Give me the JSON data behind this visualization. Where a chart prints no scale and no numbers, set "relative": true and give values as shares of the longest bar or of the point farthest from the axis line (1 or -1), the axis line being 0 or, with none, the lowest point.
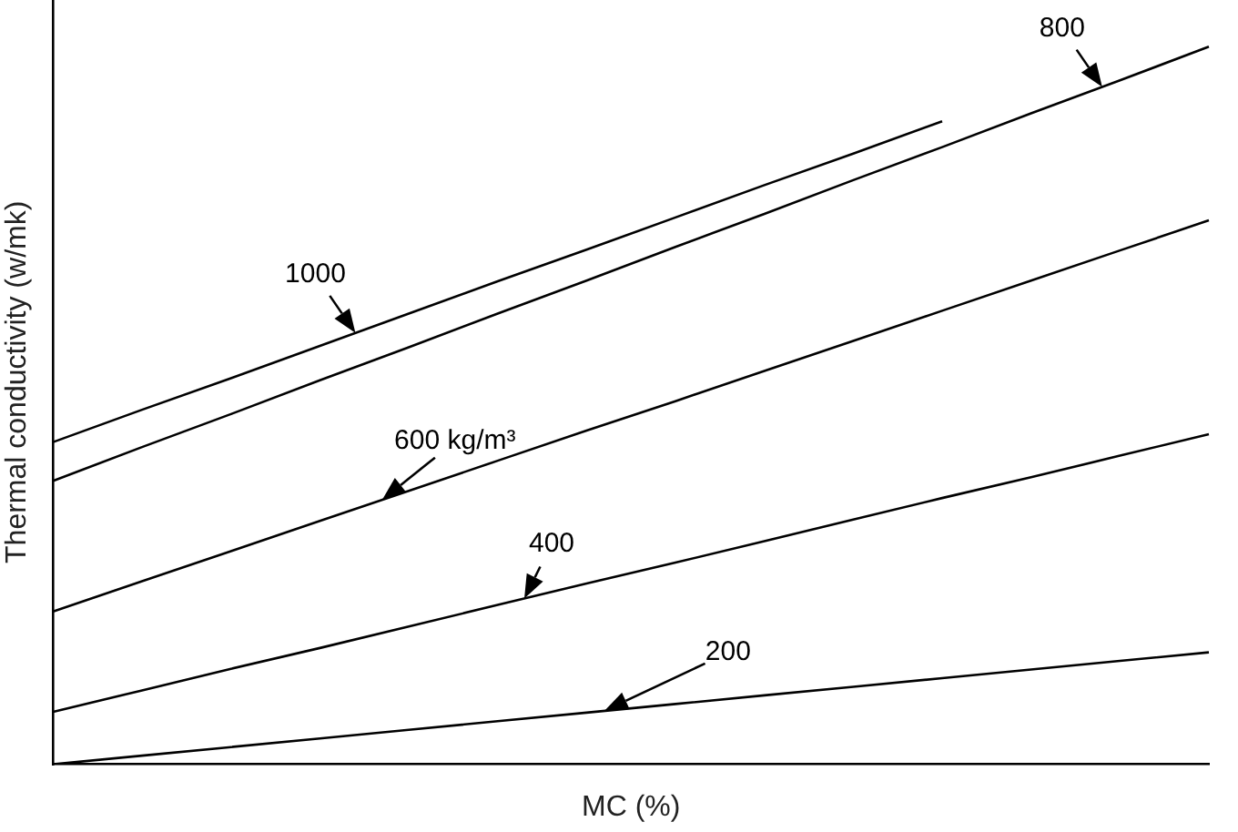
{
  "chart_data": {
    "type": "line",
    "relative": true,
    "xlabel": "MC (%)",
    "ylabel": "Thermal conductivity (w/mk)",
    "categories": [
      null,
      null,
      null,
      null,
      null,
      null,
      null,
      null,
      null,
      null,
      null,
      null,
      null,
      null
    ],
    "marker": "none",
    "line_style": "solid",
    "legend": false,
    "grid": false,
    "series": [
      {
        "name": "1000",
        "color": "#000000",
        "values": [
          0.449,
          0.494,
          0.538,
          0.583,
          0.628,
          0.673,
          0.717,
          0.762,
          0.807,
          0.851,
          0.896,
          null,
          null,
          null
        ]
      },
      {
        "name": "800",
        "color": "#000000",
        "values": [
          0.395,
          0.442,
          0.488,
          0.535,
          0.581,
          0.628,
          0.674,
          0.721,
          0.767,
          0.814,
          0.86,
          0.907,
          0.953,
          1
        ]
      },
      {
        "name": "600 kg/m³",
        "color": "#000000",
        "values": [
          0.213,
          0.255,
          0.297,
          0.339,
          0.381,
          0.423,
          0.465,
          0.506,
          0.548,
          0.59,
          0.632,
          0.674,
          0.716,
          0.758
        ]
      },
      {
        "name": "400",
        "color": "#000000",
        "values": [
          0.073,
          0.103,
          0.133,
          0.162,
          0.192,
          0.222,
          0.252,
          0.281,
          0.311,
          0.341,
          0.371,
          0.4,
          0.43,
          0.46
        ]
      },
      {
        "name": "200",
        "color": "#000000",
        "values": [
          0,
          0.012,
          0.024,
          0.036,
          0.048,
          0.06,
          0.072,
          0.084,
          0.096,
          0.108,
          0.12,
          0.132,
          0.144,
          0.156
        ]
      }
    ]
  }
}
